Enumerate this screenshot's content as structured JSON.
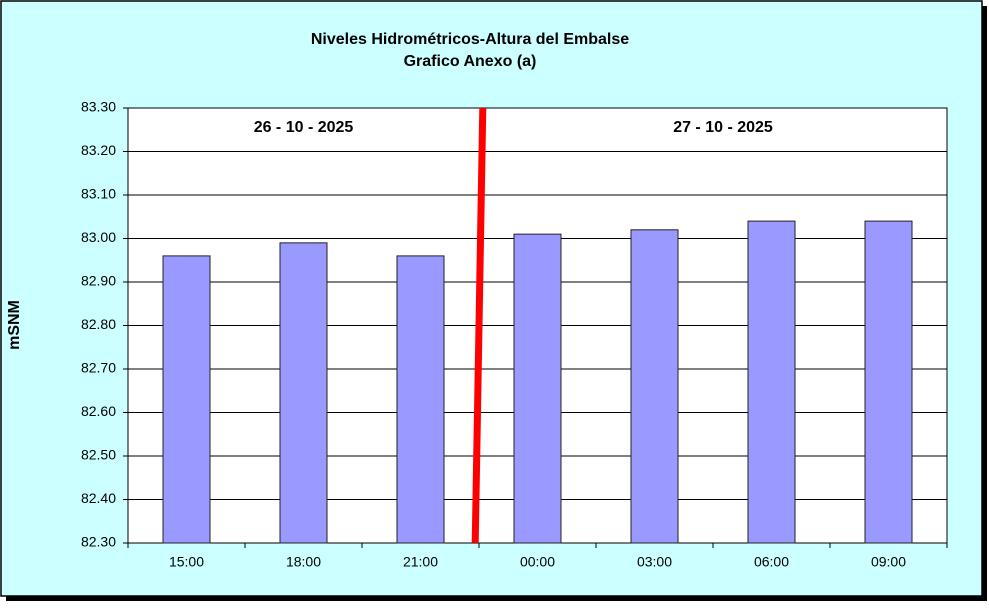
{
  "chart_data": {
    "type": "bar",
    "title": "Niveles Hidrométricos-Altura del Embalse",
    "subtitle": "Grafico Anexo (a)",
    "y_label": "mSNM",
    "annotations": [
      "26 - 10 - 2025",
      "27 - 10 - 2025"
    ],
    "categories": [
      "15:00",
      "18:00",
      "21:00",
      "00:00",
      "03:00",
      "06:00",
      "09:00"
    ],
    "values": [
      82.96,
      82.99,
      82.96,
      83.01,
      83.02,
      83.04,
      83.04
    ],
    "color": "#9999ff",
    "ylim": [
      82.3,
      83.3
    ],
    "yticks": [
      {
        "value": 82.3,
        "label": "82.30"
      },
      {
        "value": 82.4,
        "label": "82.40"
      },
      {
        "value": 82.5,
        "label": "82.50"
      },
      {
        "value": 82.6,
        "label": "82.60"
      },
      {
        "value": 82.7,
        "label": "82.70"
      },
      {
        "value": 82.8,
        "label": "82.80"
      },
      {
        "value": 82.9,
        "label": "82.90"
      },
      {
        "value": 83.0,
        "label": "83.00"
      },
      {
        "value": 83.1,
        "label": "83.10"
      },
      {
        "value": 83.2,
        "label": "83.20"
      },
      {
        "value": 83.3,
        "label": "83.30"
      }
    ],
    "grid": true
  }
}
